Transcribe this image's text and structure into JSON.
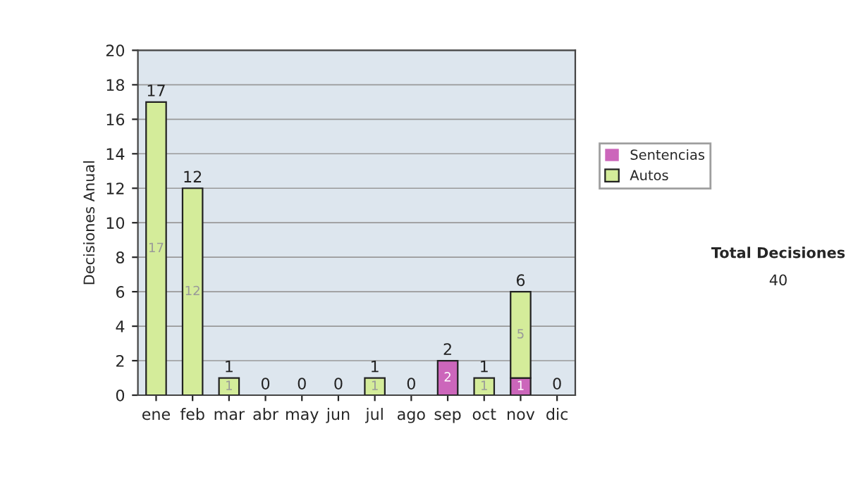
{
  "chart_data": {
    "type": "bar",
    "stacked": true,
    "ylabel": "Decisiones Anual",
    "categories": [
      "ene",
      "feb",
      "mar",
      "abr",
      "may",
      "jun",
      "jul",
      "ago",
      "sep",
      "oct",
      "nov",
      "dic"
    ],
    "series": [
      {
        "name": "Sentencias",
        "color": "#cc66bb",
        "values": [
          0,
          0,
          0,
          0,
          0,
          0,
          0,
          0,
          2,
          0,
          1,
          0
        ],
        "value_labels": [
          null,
          null,
          null,
          null,
          null,
          null,
          null,
          null,
          "2",
          null,
          "1",
          null
        ]
      },
      {
        "name": "Autos",
        "color": "#d4ec9a",
        "values": [
          17,
          12,
          1,
          0,
          0,
          0,
          1,
          0,
          0,
          1,
          5,
          0
        ],
        "value_labels": [
          "17",
          "12",
          "1",
          null,
          null,
          null,
          "1",
          null,
          null,
          "1",
          "5",
          null
        ]
      }
    ],
    "totals": [
      "17",
      "12",
      "1",
      "0",
      "0",
      "0",
      "1",
      "0",
      "2",
      "1",
      "6",
      "0"
    ],
    "ylim": [
      0,
      20
    ],
    "yticks": [
      0,
      2,
      4,
      6,
      8,
      10,
      12,
      14,
      16,
      18,
      20
    ],
    "grid": "y",
    "legend": "right",
    "annotations": [
      "Total Decisiones",
      "40"
    ]
  }
}
